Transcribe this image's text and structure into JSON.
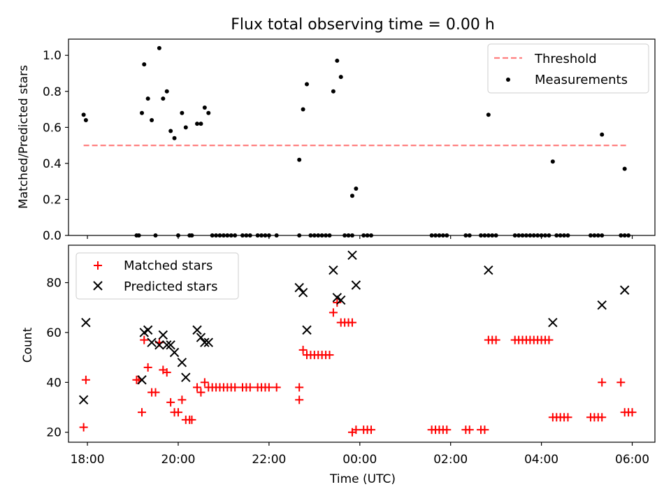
{
  "title": "Flux total observing time = 0.00 h",
  "colors": {
    "threshold": "#ff7f7f",
    "measurements": "#000000",
    "matched": "#ff0000",
    "predicted": "#000000"
  },
  "chart_data": [
    {
      "type": "scatter",
      "ylabel": "Matched/Predicted stars",
      "xlim": [
        "17:35",
        "06:30"
      ],
      "ylim": [
        0,
        1.09
      ],
      "yticks": [
        "0.0",
        "0.2",
        "0.4",
        "0.6",
        "0.8",
        "1.0"
      ],
      "legend": {
        "placement": "top-right",
        "entries": [
          "Threshold",
          "Measurements"
        ]
      },
      "threshold": {
        "name": "Threshold",
        "value": 0.5,
        "x": [
          "17:55",
          "05:55"
        ]
      },
      "series": [
        {
          "name": "Measurements",
          "points": [
            [
              "17:55",
              0.67
            ],
            [
              "17:58",
              0.64
            ],
            [
              "19:05",
              0.0
            ],
            [
              "19:08",
              0.0
            ],
            [
              "19:12",
              0.68
            ],
            [
              "19:15",
              0.95
            ],
            [
              "19:20",
              0.76
            ],
            [
              "19:25",
              0.64
            ],
            [
              "19:30",
              0.0
            ],
            [
              "19:35",
              1.04
            ],
            [
              "19:40",
              0.76
            ],
            [
              "19:45",
              0.8
            ],
            [
              "19:50",
              0.58
            ],
            [
              "19:55",
              0.54
            ],
            [
              "20:00",
              0.0
            ],
            [
              "20:05",
              0.68
            ],
            [
              "20:10",
              0.6
            ],
            [
              "20:15",
              0.0
            ],
            [
              "20:18",
              0.0
            ],
            [
              "20:25",
              0.62
            ],
            [
              "20:30",
              0.62
            ],
            [
              "20:35",
              0.71
            ],
            [
              "20:40",
              0.68
            ],
            [
              "20:45",
              0.0
            ],
            [
              "20:50",
              0.0
            ],
            [
              "20:55",
              0.0
            ],
            [
              "21:00",
              0.0
            ],
            [
              "21:05",
              0.0
            ],
            [
              "21:10",
              0.0
            ],
            [
              "21:15",
              0.0
            ],
            [
              "21:25",
              0.0
            ],
            [
              "21:30",
              0.0
            ],
            [
              "21:35",
              0.0
            ],
            [
              "21:45",
              0.0
            ],
            [
              "21:50",
              0.0
            ],
            [
              "21:55",
              0.0
            ],
            [
              "22:00",
              0.0
            ],
            [
              "22:10",
              0.0
            ],
            [
              "22:40",
              0.0
            ],
            [
              "22:40",
              0.42
            ],
            [
              "22:45",
              0.7
            ],
            [
              "22:50",
              0.84
            ],
            [
              "22:55",
              0.0
            ],
            [
              "23:00",
              0.0
            ],
            [
              "23:05",
              0.0
            ],
            [
              "23:10",
              0.0
            ],
            [
              "23:15",
              0.0
            ],
            [
              "23:20",
              0.0
            ],
            [
              "23:25",
              0.8
            ],
            [
              "23:30",
              0.97
            ],
            [
              "23:35",
              0.88
            ],
            [
              "23:40",
              0.0
            ],
            [
              "23:45",
              0.0
            ],
            [
              "23:50",
              0.0
            ],
            [
              "23:50",
              0.22
            ],
            [
              "23:55",
              0.26
            ],
            [
              "00:05",
              0.0
            ],
            [
              "00:10",
              0.0
            ],
            [
              "00:15",
              0.0
            ],
            [
              "01:35",
              0.0
            ],
            [
              "01:40",
              0.0
            ],
            [
              "01:45",
              0.0
            ],
            [
              "01:50",
              0.0
            ],
            [
              "01:55",
              0.0
            ],
            [
              "02:20",
              0.0
            ],
            [
              "02:25",
              0.0
            ],
            [
              "02:40",
              0.0
            ],
            [
              "02:45",
              0.0
            ],
            [
              "02:50",
              0.0
            ],
            [
              "02:50",
              0.67
            ],
            [
              "02:55",
              0.0
            ],
            [
              "03:00",
              0.0
            ],
            [
              "03:25",
              0.0
            ],
            [
              "03:30",
              0.0
            ],
            [
              "03:35",
              0.0
            ],
            [
              "03:40",
              0.0
            ],
            [
              "03:45",
              0.0
            ],
            [
              "03:50",
              0.0
            ],
            [
              "03:55",
              0.0
            ],
            [
              "04:00",
              0.0
            ],
            [
              "04:05",
              0.0
            ],
            [
              "04:10",
              0.0
            ],
            [
              "04:15",
              0.41
            ],
            [
              "04:20",
              0.0
            ],
            [
              "04:25",
              0.0
            ],
            [
              "04:30",
              0.0
            ],
            [
              "04:35",
              0.0
            ],
            [
              "05:05",
              0.0
            ],
            [
              "05:10",
              0.0
            ],
            [
              "05:15",
              0.0
            ],
            [
              "05:20",
              0.0
            ],
            [
              "05:20",
              0.56
            ],
            [
              "05:45",
              0.0
            ],
            [
              "05:50",
              0.0
            ],
            [
              "05:50",
              0.37
            ],
            [
              "05:55",
              0.0
            ]
          ]
        }
      ]
    },
    {
      "type": "scatter",
      "xlabel": "Time (UTC)",
      "ylabel": "Count",
      "xlim": [
        "17:35",
        "06:30"
      ],
      "ylim": [
        16,
        95
      ],
      "yticks": [
        "20",
        "40",
        "60",
        "80"
      ],
      "xticks": [
        "18:00",
        "20:00",
        "22:00",
        "00:00",
        "02:00",
        "04:00",
        "06:00"
      ],
      "legend": {
        "placement": "top-left",
        "entries": [
          "Matched stars",
          "Predicted stars"
        ]
      },
      "series": [
        {
          "name": "Matched stars",
          "marker": "plus",
          "points": [
            [
              "17:55",
              22
            ],
            [
              "17:58",
              41
            ],
            [
              "19:05",
              41
            ],
            [
              "19:08",
              41
            ],
            [
              "19:12",
              28
            ],
            [
              "19:15",
              57
            ],
            [
              "19:20",
              46
            ],
            [
              "19:25",
              36
            ],
            [
              "19:30",
              36
            ],
            [
              "19:35",
              56
            ],
            [
              "19:40",
              45
            ],
            [
              "19:45",
              44
            ],
            [
              "19:50",
              32
            ],
            [
              "19:55",
              28
            ],
            [
              "20:00",
              28
            ],
            [
              "20:05",
              33
            ],
            [
              "20:10",
              25
            ],
            [
              "20:15",
              25
            ],
            [
              "20:18",
              25
            ],
            [
              "20:25",
              38
            ],
            [
              "20:30",
              36
            ],
            [
              "20:35",
              40
            ],
            [
              "20:40",
              38
            ],
            [
              "20:45",
              38
            ],
            [
              "20:50",
              38
            ],
            [
              "20:55",
              38
            ],
            [
              "21:00",
              38
            ],
            [
              "21:05",
              38
            ],
            [
              "21:10",
              38
            ],
            [
              "21:15",
              38
            ],
            [
              "21:25",
              38
            ],
            [
              "21:30",
              38
            ],
            [
              "21:35",
              38
            ],
            [
              "21:45",
              38
            ],
            [
              "21:50",
              38
            ],
            [
              "21:55",
              38
            ],
            [
              "22:00",
              38
            ],
            [
              "22:10",
              38
            ],
            [
              "22:40",
              38
            ],
            [
              "22:40",
              33
            ],
            [
              "22:45",
              53
            ],
            [
              "22:50",
              51
            ],
            [
              "22:55",
              51
            ],
            [
              "23:00",
              51
            ],
            [
              "23:05",
              51
            ],
            [
              "23:10",
              51
            ],
            [
              "23:15",
              51
            ],
            [
              "23:20",
              51
            ],
            [
              "23:25",
              68
            ],
            [
              "23:30",
              72
            ],
            [
              "23:35",
              64
            ],
            [
              "23:40",
              64
            ],
            [
              "23:45",
              64
            ],
            [
              "23:50",
              64
            ],
            [
              "23:50",
              20
            ],
            [
              "23:55",
              21
            ],
            [
              "00:05",
              21
            ],
            [
              "00:10",
              21
            ],
            [
              "00:15",
              21
            ],
            [
              "01:35",
              21
            ],
            [
              "01:40",
              21
            ],
            [
              "01:45",
              21
            ],
            [
              "01:50",
              21
            ],
            [
              "01:55",
              21
            ],
            [
              "02:20",
              21
            ],
            [
              "02:25",
              21
            ],
            [
              "02:40",
              21
            ],
            [
              "02:45",
              21
            ],
            [
              "02:50",
              57
            ],
            [
              "02:55",
              57
            ],
            [
              "03:00",
              57
            ],
            [
              "03:25",
              57
            ],
            [
              "03:30",
              57
            ],
            [
              "03:35",
              57
            ],
            [
              "03:40",
              57
            ],
            [
              "03:45",
              57
            ],
            [
              "03:50",
              57
            ],
            [
              "03:55",
              57
            ],
            [
              "04:00",
              57
            ],
            [
              "04:05",
              57
            ],
            [
              "04:10",
              57
            ],
            [
              "04:15",
              26
            ],
            [
              "04:20",
              26
            ],
            [
              "04:25",
              26
            ],
            [
              "04:30",
              26
            ],
            [
              "04:35",
              26
            ],
            [
              "05:05",
              26
            ],
            [
              "05:10",
              26
            ],
            [
              "05:15",
              26
            ],
            [
              "05:20",
              26
            ],
            [
              "05:20",
              40
            ],
            [
              "05:45",
              40
            ],
            [
              "05:50",
              28
            ],
            [
              "05:55",
              28
            ],
            [
              "06:00",
              28
            ]
          ]
        },
        {
          "name": "Predicted stars",
          "marker": "x",
          "points": [
            [
              "17:55",
              33
            ],
            [
              "17:58",
              64
            ],
            [
              "19:12",
              41
            ],
            [
              "19:15",
              60
            ],
            [
              "19:20",
              61
            ],
            [
              "19:25",
              56
            ],
            [
              "19:35",
              55
            ],
            [
              "19:40",
              59
            ],
            [
              "19:45",
              55
            ],
            [
              "19:50",
              55
            ],
            [
              "19:55",
              52
            ],
            [
              "20:05",
              48
            ],
            [
              "20:10",
              42
            ],
            [
              "20:25",
              61
            ],
            [
              "20:30",
              58
            ],
            [
              "20:35",
              56
            ],
            [
              "20:40",
              56
            ],
            [
              "22:40",
              78
            ],
            [
              "22:45",
              76
            ],
            [
              "22:50",
              61
            ],
            [
              "23:25",
              85
            ],
            [
              "23:30",
              74
            ],
            [
              "23:35",
              73
            ],
            [
              "23:50",
              91
            ],
            [
              "23:55",
              79
            ],
            [
              "02:50",
              85
            ],
            [
              "04:15",
              64
            ],
            [
              "05:20",
              71
            ],
            [
              "05:50",
              77
            ]
          ]
        }
      ]
    }
  ]
}
